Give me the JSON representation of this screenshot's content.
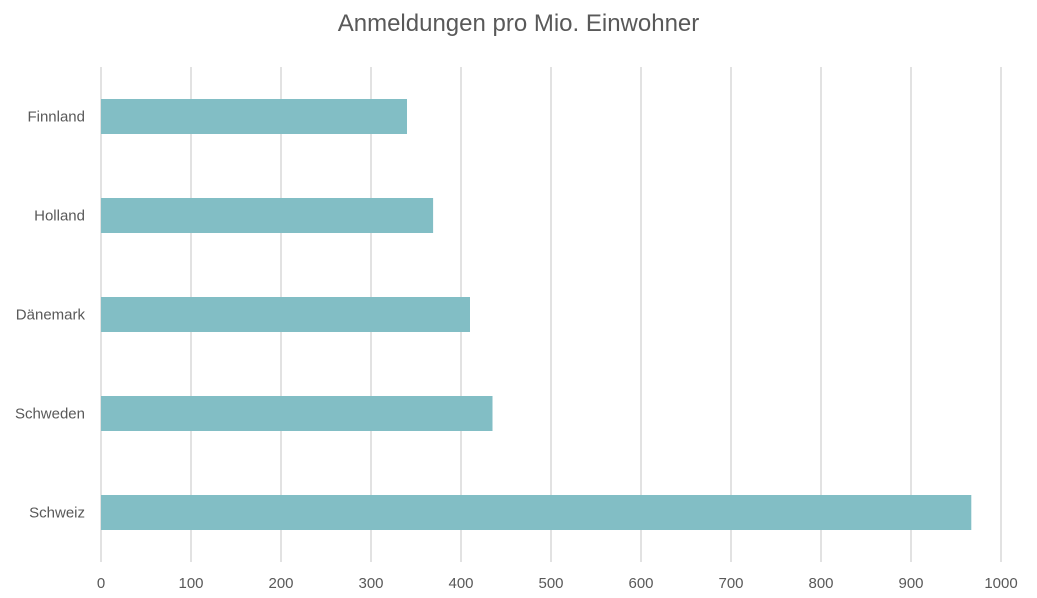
{
  "chart_data": {
    "type": "bar",
    "orientation": "horizontal",
    "title": "Anmeldungen pro Mio. Einwohner",
    "xlabel": "",
    "ylabel": "",
    "categories": [
      "Finnland",
      "Holland",
      "Dänemark",
      "Schweden",
      "Schweiz"
    ],
    "values": [
      340,
      369,
      410,
      435,
      967
    ],
    "xlim": [
      0,
      1000
    ],
    "xticks": [
      0,
      100,
      200,
      300,
      400,
      500,
      600,
      700,
      800,
      900,
      1000
    ],
    "grid": "vertical",
    "bar_color": "#82BEC5",
    "grid_color": "#D9D9D9",
    "text_color": "#595959"
  }
}
